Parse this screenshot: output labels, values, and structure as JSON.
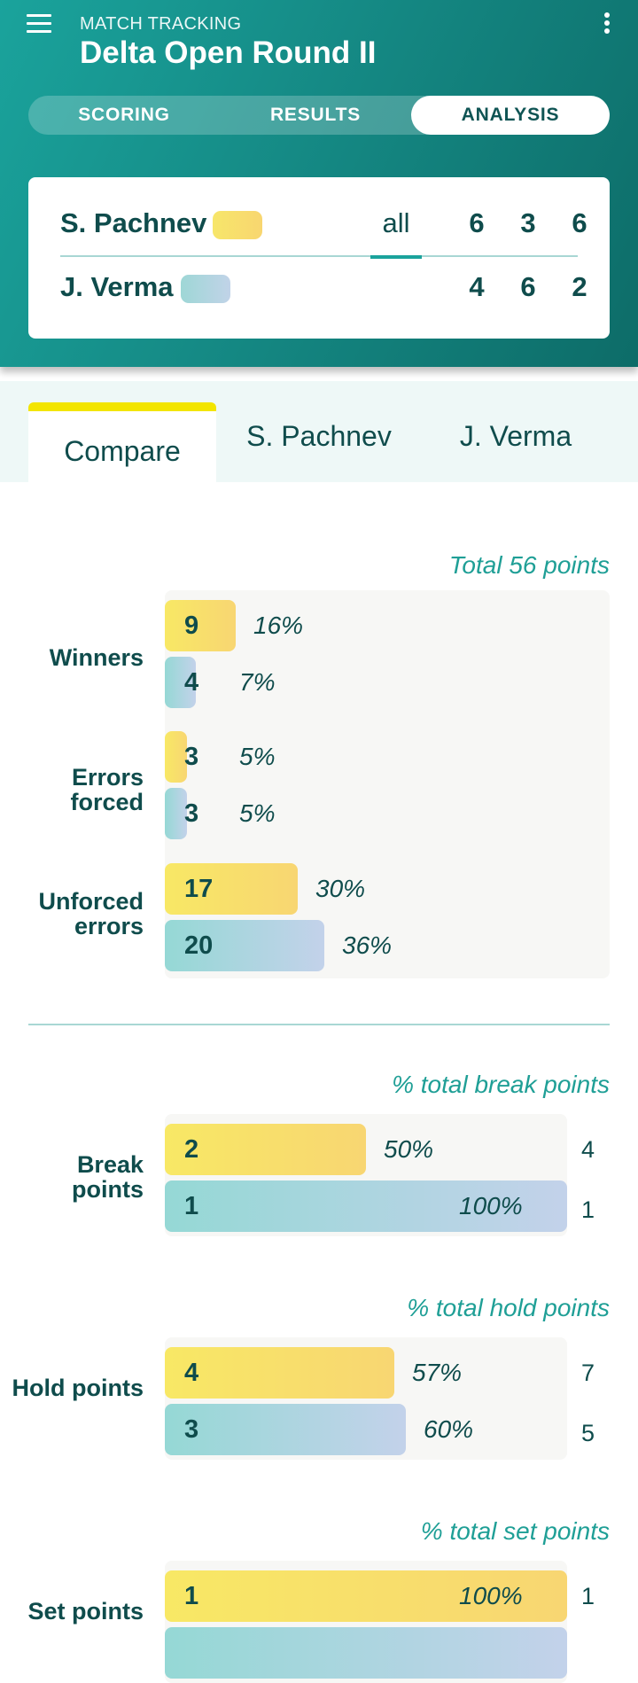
{
  "header": {
    "overline": "MATCH TRACKING",
    "title": "Delta Open Round II",
    "tabs": [
      {
        "label": "SCORING",
        "active": false
      },
      {
        "label": "RESULTS",
        "active": false
      },
      {
        "label": "ANALYSIS",
        "active": true
      }
    ],
    "menu_icon": "menu-icon",
    "more_icon": "more-vertical-icon"
  },
  "scoreboard": {
    "set_filter_label": "all",
    "players": [
      {
        "name": "S. Pachnev",
        "color": "#f8e070",
        "sets": [
          "6",
          "3",
          "6"
        ]
      },
      {
        "name": "J. Verma",
        "color": "#a8d6dc",
        "sets": [
          "4",
          "6",
          "2"
        ]
      }
    ]
  },
  "subtabs": [
    {
      "label": "Compare",
      "active": true,
      "indicator_color": "#f3e500"
    },
    {
      "label": "S. Pachnev",
      "active": false
    },
    {
      "label": "J. Verma",
      "active": false
    }
  ],
  "colors": {
    "header_primary": "#1aa39c",
    "player1": "#f8e070",
    "player2": "#a8d6dc",
    "caption": "#1f9f96",
    "text": "#0f4c4c"
  },
  "point_outcomes": {
    "caption": "Total 56 points",
    "rows": [
      {
        "label": "Winners",
        "p1": {
          "value": "9",
          "pct": "16%",
          "fraction": 0.16
        },
        "p2": {
          "value": "4",
          "pct": "7%",
          "fraction": 0.07
        }
      },
      {
        "label": "Errors forced",
        "p1": {
          "value": "3",
          "pct": "5%",
          "fraction": 0.05
        },
        "p2": {
          "value": "3",
          "pct": "5%",
          "fraction": 0.05
        }
      },
      {
        "label": "Unforced errors",
        "p1": {
          "value": "17",
          "pct": "30%",
          "fraction": 0.3
        },
        "p2": {
          "value": "20",
          "pct": "36%",
          "fraction": 0.36
        }
      }
    ]
  },
  "break_points": {
    "caption": "% total break points",
    "label": "Break points",
    "p1": {
      "value": "2",
      "pct": "50%",
      "fraction": 0.5,
      "total": "4"
    },
    "p2": {
      "value": "1",
      "pct": "100%",
      "fraction": 1.0,
      "total": "1"
    }
  },
  "hold_points": {
    "caption": "% total hold points",
    "label": "Hold points",
    "p1": {
      "value": "4",
      "pct": "57%",
      "fraction": 0.57,
      "total": "7"
    },
    "p2": {
      "value": "3",
      "pct": "60%",
      "fraction": 0.6,
      "total": "5"
    }
  },
  "set_points": {
    "caption": "% total set points",
    "label": "Set points",
    "p1": {
      "value": "1",
      "pct": "100%",
      "fraction": 1.0,
      "total": "1"
    }
  }
}
